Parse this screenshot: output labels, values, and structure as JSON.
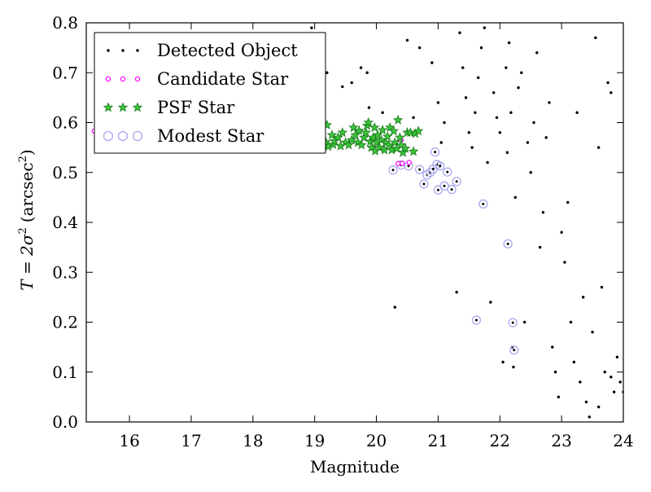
{
  "chart_data": {
    "type": "scatter",
    "title": "",
    "xlabel": "Magnitude",
    "ylabel_main": "T = 2σ",
    "ylabel_sup1": "2",
    "ylabel_unit": "(arcsec",
    "ylabel_sup2": "2",
    "ylabel_close": ")",
    "xlim": [
      15.3,
      24.0
    ],
    "ylim": [
      0.0,
      0.8
    ],
    "xticks": [
      16,
      17,
      18,
      19,
      20,
      21,
      22,
      23,
      24
    ],
    "xtick_labels": [
      "16",
      "17",
      "18",
      "19",
      "20",
      "21",
      "22",
      "23",
      "24"
    ],
    "yticks": [
      0.0,
      0.1,
      0.2,
      0.3,
      0.4,
      0.5,
      0.6,
      0.7,
      0.8
    ],
    "ytick_labels": [
      "0.0",
      "0.1",
      "0.2",
      "0.3",
      "0.4",
      "0.5",
      "0.6",
      "0.7",
      "0.8"
    ],
    "grid": false,
    "legend_position": "top-left",
    "legend": [
      {
        "key": "detected",
        "label": "Detected Object"
      },
      {
        "key": "candidate",
        "label": "Candidate Star"
      },
      {
        "key": "psf",
        "label": "PSF Star"
      },
      {
        "key": "modest",
        "label": "Modest Star"
      }
    ],
    "colors": {
      "detected": "#000000",
      "candidate_edge": "#ff00ff",
      "psf_fill": "#3cc43c",
      "psf_edge": "#1a7a1a",
      "modest_edge": "#a9a9ee"
    },
    "series": {
      "candidate": [
        [
          15.43,
          0.583
        ],
        [
          15.5,
          0.58
        ],
        [
          15.56,
          0.578
        ],
        [
          15.62,
          0.576
        ],
        [
          15.68,
          0.574
        ],
        [
          15.76,
          0.571
        ],
        [
          15.84,
          0.569
        ],
        [
          15.93,
          0.567
        ],
        [
          16.02,
          0.565
        ],
        [
          16.12,
          0.563
        ],
        [
          16.22,
          0.561
        ],
        [
          16.33,
          0.56
        ],
        [
          16.45,
          0.559
        ],
        [
          16.57,
          0.558
        ],
        [
          16.7,
          0.557
        ],
        [
          16.83,
          0.556
        ],
        [
          16.96,
          0.556
        ],
        [
          17.1,
          0.556
        ],
        [
          17.24,
          0.556
        ],
        [
          17.38,
          0.556
        ],
        [
          17.52,
          0.556
        ],
        [
          17.66,
          0.556
        ],
        [
          17.8,
          0.556
        ],
        [
          17.94,
          0.557
        ],
        [
          18.06,
          0.557
        ],
        [
          18.2,
          0.557
        ],
        [
          18.35,
          0.558
        ],
        [
          18.5,
          0.558
        ],
        [
          18.64,
          0.559
        ],
        [
          18.8,
          0.56
        ],
        [
          18.95,
          0.56
        ],
        [
          19.1,
          0.56
        ],
        [
          20.35,
          0.518
        ],
        [
          20.42,
          0.518
        ],
        [
          20.53,
          0.52
        ],
        [
          20.4,
          0.565
        ]
      ],
      "modest": [
        [
          15.92,
          0.578
        ],
        [
          15.68,
          0.574
        ],
        [
          20.27,
          0.505
        ],
        [
          20.4,
          0.515
        ],
        [
          20.52,
          0.513
        ],
        [
          20.7,
          0.506
        ],
        [
          20.77,
          0.477
        ],
        [
          20.82,
          0.495
        ],
        [
          20.87,
          0.5
        ],
        [
          20.92,
          0.507
        ],
        [
          20.95,
          0.541
        ],
        [
          20.98,
          0.516
        ],
        [
          21.0,
          0.465
        ],
        [
          21.03,
          0.513
        ],
        [
          21.1,
          0.473
        ],
        [
          21.15,
          0.501
        ],
        [
          21.22,
          0.466
        ],
        [
          21.3,
          0.482
        ],
        [
          21.62,
          0.204
        ],
        [
          21.73,
          0.437
        ],
        [
          22.13,
          0.357
        ],
        [
          22.21,
          0.199
        ],
        [
          22.23,
          0.144
        ]
      ],
      "psf": [
        [
          18.85,
          0.555
        ],
        [
          18.95,
          0.558
        ],
        [
          19.0,
          0.56
        ],
        [
          19.05,
          0.552
        ],
        [
          19.1,
          0.565
        ],
        [
          19.12,
          0.555
        ],
        [
          19.18,
          0.561
        ],
        [
          19.2,
          0.595
        ],
        [
          19.22,
          0.552
        ],
        [
          19.28,
          0.575
        ],
        [
          19.3,
          0.556
        ],
        [
          19.32,
          0.563
        ],
        [
          19.38,
          0.57
        ],
        [
          19.42,
          0.553
        ],
        [
          19.45,
          0.58
        ],
        [
          19.5,
          0.56
        ],
        [
          19.55,
          0.555
        ],
        [
          19.6,
          0.565
        ],
        [
          19.63,
          0.59
        ],
        [
          19.66,
          0.575
        ],
        [
          19.7,
          0.56
        ],
        [
          19.72,
          0.584
        ],
        [
          19.76,
          0.555
        ],
        [
          19.8,
          0.57
        ],
        [
          19.83,
          0.58
        ],
        [
          19.85,
          0.594
        ],
        [
          19.87,
          0.6
        ],
        [
          19.9,
          0.562
        ],
        [
          19.92,
          0.55
        ],
        [
          19.95,
          0.57
        ],
        [
          19.97,
          0.59
        ],
        [
          19.98,
          0.543
        ],
        [
          20.0,
          0.56
        ],
        [
          20.02,
          0.575
        ],
        [
          20.05,
          0.55
        ],
        [
          20.08,
          0.565
        ],
        [
          20.1,
          0.585
        ],
        [
          20.13,
          0.545
        ],
        [
          20.15,
          0.56
        ],
        [
          20.18,
          0.572
        ],
        [
          20.2,
          0.555
        ],
        [
          20.22,
          0.59
        ],
        [
          20.25,
          0.545
        ],
        [
          20.28,
          0.583
        ],
        [
          20.3,
          0.56
        ],
        [
          20.33,
          0.548
        ],
        [
          20.35,
          0.605
        ],
        [
          20.38,
          0.57
        ],
        [
          20.4,
          0.555
        ],
        [
          20.43,
          0.54
        ],
        [
          20.47,
          0.548
        ],
        [
          20.5,
          0.58
        ],
        [
          20.55,
          0.58
        ],
        [
          20.6,
          0.542
        ],
        [
          20.63,
          0.578
        ],
        [
          20.68,
          0.583
        ]
      ],
      "detected": [
        [
          18.95,
          0.79
        ],
        [
          19.2,
          0.7
        ],
        [
          19.45,
          0.672
        ],
        [
          19.6,
          0.68
        ],
        [
          19.75,
          0.71
        ],
        [
          19.85,
          0.7
        ],
        [
          19.88,
          0.63
        ],
        [
          20.1,
          0.62
        ],
        [
          20.3,
          0.23
        ],
        [
          20.5,
          0.765
        ],
        [
          20.6,
          0.61
        ],
        [
          20.7,
          0.75
        ],
        [
          20.9,
          0.72
        ],
        [
          21.0,
          0.64
        ],
        [
          21.05,
          0.56
        ],
        [
          21.1,
          0.6
        ],
        [
          21.3,
          0.26
        ],
        [
          21.35,
          0.78
        ],
        [
          21.4,
          0.71
        ],
        [
          21.45,
          0.65
        ],
        [
          21.5,
          0.58
        ],
        [
          21.55,
          0.55
        ],
        [
          21.6,
          0.62
        ],
        [
          21.65,
          0.69
        ],
        [
          21.7,
          0.75
        ],
        [
          21.75,
          0.79
        ],
        [
          21.8,
          0.52
        ],
        [
          21.85,
          0.24
        ],
        [
          21.9,
          0.66
        ],
        [
          21.95,
          0.61
        ],
        [
          22.0,
          0.58
        ],
        [
          22.05,
          0.12
        ],
        [
          22.1,
          0.71
        ],
        [
          22.12,
          0.54
        ],
        [
          22.15,
          0.76
        ],
        [
          22.18,
          0.62
        ],
        [
          22.2,
          0.15
        ],
        [
          22.22,
          0.11
        ],
        [
          22.25,
          0.45
        ],
        [
          22.3,
          0.67
        ],
        [
          22.35,
          0.7
        ],
        [
          22.4,
          0.2
        ],
        [
          22.45,
          0.56
        ],
        [
          22.5,
          0.5
        ],
        [
          22.55,
          0.6
        ],
        [
          22.6,
          0.74
        ],
        [
          22.65,
          0.35
        ],
        [
          22.7,
          0.42
        ],
        [
          22.75,
          0.57
        ],
        [
          22.8,
          0.64
        ],
        [
          22.85,
          0.15
        ],
        [
          22.9,
          0.1
        ],
        [
          22.95,
          0.05
        ],
        [
          23.0,
          0.38
        ],
        [
          23.05,
          0.32
        ],
        [
          23.1,
          0.44
        ],
        [
          23.15,
          0.2
        ],
        [
          23.2,
          0.12
        ],
        [
          23.25,
          0.62
        ],
        [
          23.3,
          0.08
        ],
        [
          23.35,
          0.25
        ],
        [
          23.4,
          0.04
        ],
        [
          23.45,
          0.01
        ],
        [
          23.5,
          0.18
        ],
        [
          23.55,
          0.77
        ],
        [
          23.6,
          0.03
        ],
        [
          23.65,
          0.27
        ],
        [
          23.7,
          0.1
        ],
        [
          23.75,
          0.68
        ],
        [
          23.8,
          0.09
        ],
        [
          23.85,
          0.06
        ],
        [
          23.9,
          0.13
        ],
        [
          23.95,
          0.08
        ],
        [
          24.0,
          0.06
        ],
        [
          23.8,
          0.66
        ],
        [
          23.6,
          0.55
        ]
      ]
    }
  }
}
